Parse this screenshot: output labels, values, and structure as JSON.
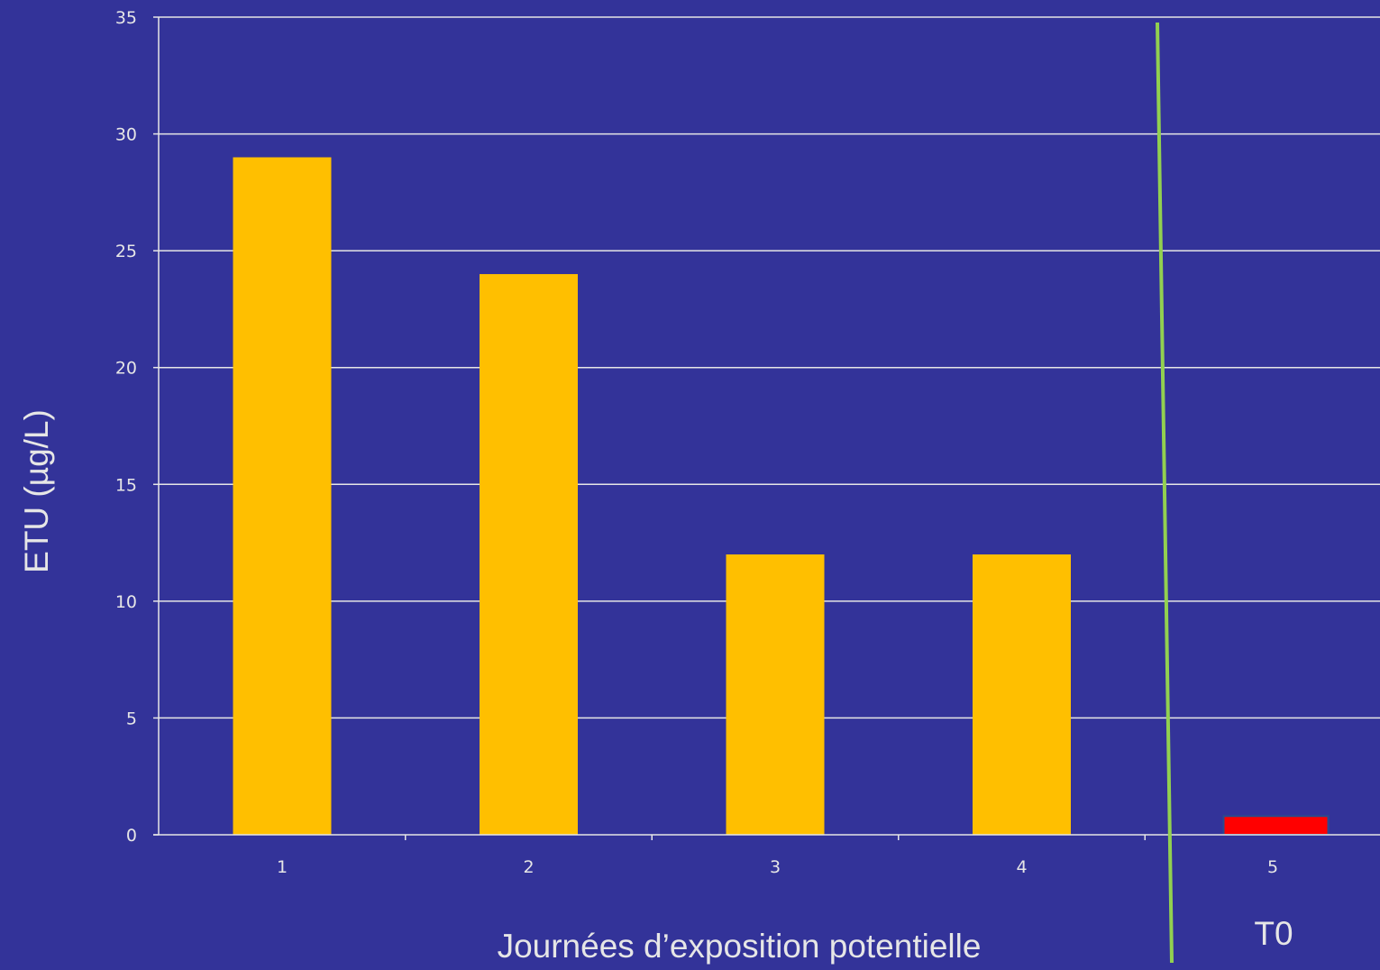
{
  "chart_data": {
    "type": "bar",
    "categories": [
      "1",
      "2",
      "3",
      "4",
      "5"
    ],
    "values": [
      29,
      24,
      12,
      12,
      0.8
    ],
    "bar_colors": [
      "#ffbf00",
      "#ffbf00",
      "#ffbf00",
      "#ffbf00",
      "#ff0000"
    ],
    "ylim": [
      0,
      35
    ],
    "yticks": [
      "0",
      "5",
      "10",
      "15",
      "20",
      "25",
      "30",
      "35"
    ],
    "ytick_values": [
      0,
      5,
      10,
      15,
      20,
      25,
      30,
      35
    ],
    "xlabel": "Journées d’exposition potentielle",
    "ylabel": "ETU (µg/L)",
    "grid": true,
    "annotation": "T0",
    "separator_color": "#92d050"
  },
  "colors": {
    "background": "#333399",
    "gridline": "#e6e6e6",
    "text": "#e6e6e6"
  }
}
